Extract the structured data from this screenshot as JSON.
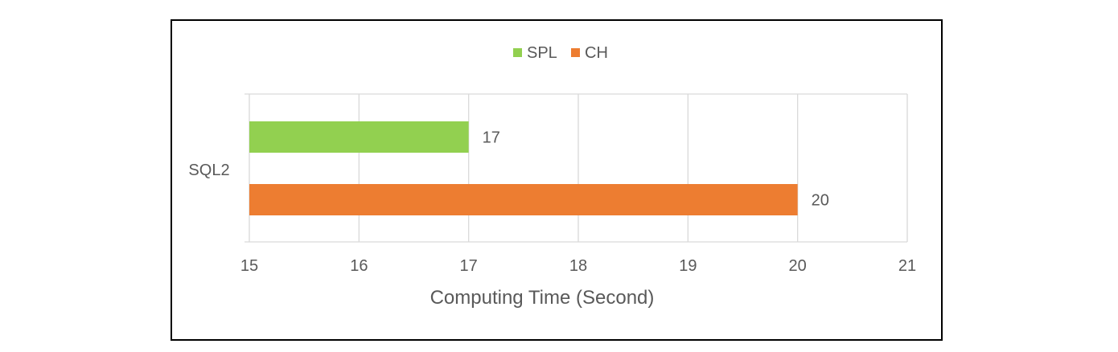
{
  "chart_data": {
    "type": "bar",
    "orientation": "horizontal",
    "categories": [
      "SQL2"
    ],
    "series": [
      {
        "name": "SPL",
        "values": [
          17
        ],
        "color": "#92d050"
      },
      {
        "name": "CH",
        "values": [
          20
        ],
        "color": "#ed7d31"
      }
    ],
    "xlabel": "Computing Time (Second)",
    "ylabel": "",
    "xlim": [
      15,
      21
    ],
    "xticks": [
      "15",
      "16",
      "17",
      "18",
      "19",
      "20",
      "21"
    ],
    "grid": true,
    "legend": "top"
  }
}
